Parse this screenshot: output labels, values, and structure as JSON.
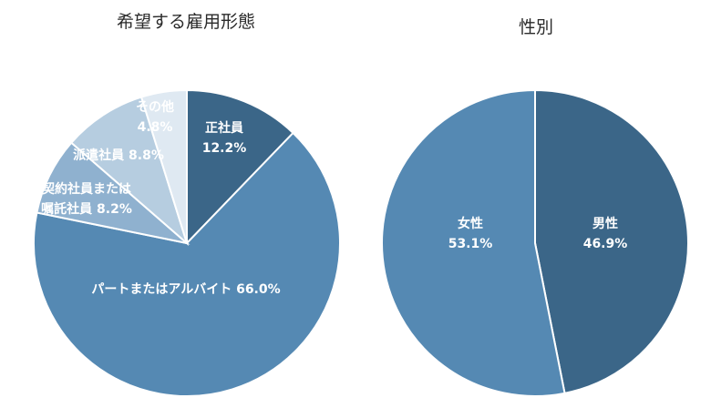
{
  "chart_data": [
    {
      "type": "pie",
      "title": "希望する雇用形態",
      "colors": [
        "#3b6688",
        "#5589b3",
        "#8fb1cf",
        "#b6cde0",
        "#dfe9f2"
      ],
      "slices": [
        {
          "name": "正社員",
          "value": 12.2,
          "label_lines": [
            "正社員",
            "12.2%"
          ]
        },
        {
          "name": "パートまたはアルバイト",
          "value": 66.0,
          "label_lines": [
            "パートまたはアルバイト 66.0%"
          ]
        },
        {
          "name": "契約社員または嘱託社員",
          "value": 8.2,
          "label_lines": [
            "契約社員または",
            "嘱託社員 8.2%"
          ]
        },
        {
          "name": "派遣社員",
          "value": 8.8,
          "label_lines": [
            "派遣社員 8.8%"
          ]
        },
        {
          "name": "その他",
          "value": 4.8,
          "label_lines": [
            "その他",
            "4.8%"
          ]
        }
      ]
    },
    {
      "type": "pie",
      "title": "性別",
      "colors": [
        "#3b6688",
        "#5589b3"
      ],
      "slices": [
        {
          "name": "男性",
          "value": 46.9,
          "label_lines": [
            "男性",
            "46.9%"
          ]
        },
        {
          "name": "女性",
          "value": 53.1,
          "label_lines": [
            "女性",
            "53.1%"
          ]
        }
      ]
    }
  ]
}
